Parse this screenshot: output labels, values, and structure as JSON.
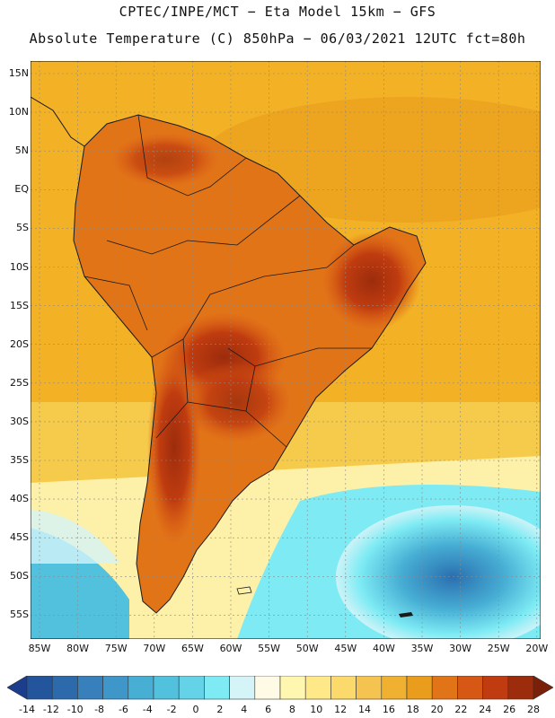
{
  "header": {
    "line1": "CPTEC/INPE/MCT −  Eta Model 15km − GFS",
    "line2": "Absolute Temperature (C) 850hPa − 06/03/2021 12UTC fct=80h"
  },
  "axes": {
    "latitudes": [
      "15N",
      "10N",
      "5N",
      "EQ",
      "5S",
      "10S",
      "15S",
      "20S",
      "25S",
      "30S",
      "35S",
      "40S",
      "45S",
      "50S",
      "55S"
    ],
    "longitudes": [
      "85W",
      "80W",
      "75W",
      "70W",
      "65W",
      "60W",
      "55W",
      "50W",
      "45W",
      "40W",
      "35W",
      "30W",
      "25W",
      "20W"
    ]
  },
  "legend": {
    "labels": [
      "-14",
      "-12",
      "-10",
      "-8",
      "-6",
      "-4",
      "-2",
      "0",
      "2",
      "4",
      "6",
      "8",
      "10",
      "12",
      "14",
      "16",
      "18",
      "20",
      "22",
      "24",
      "26",
      "28"
    ],
    "colors": [
      "#1c3c8c",
      "#23559c",
      "#2c6aac",
      "#3880bc",
      "#3e97c8",
      "#47aed4",
      "#52c1de",
      "#64d3e8",
      "#7eebf4",
      "#d4f4f8",
      "#fffae6",
      "#fff6b0",
      "#fee888",
      "#fbd96a",
      "#f5c450",
      "#f0b030",
      "#ea9c1c",
      "#e27418",
      "#d65814",
      "#c03c10",
      "#9c2c0c",
      "#7a2008"
    ]
  },
  "colors": {
    "ocean_warm": "#f3b226",
    "ocean_mid": "#f7d358",
    "ocean_light": "#fdf0a8",
    "cold_core": "#2f8fc6",
    "land_hot": "#b1401a",
    "coastline": "#1a1a1a"
  }
}
